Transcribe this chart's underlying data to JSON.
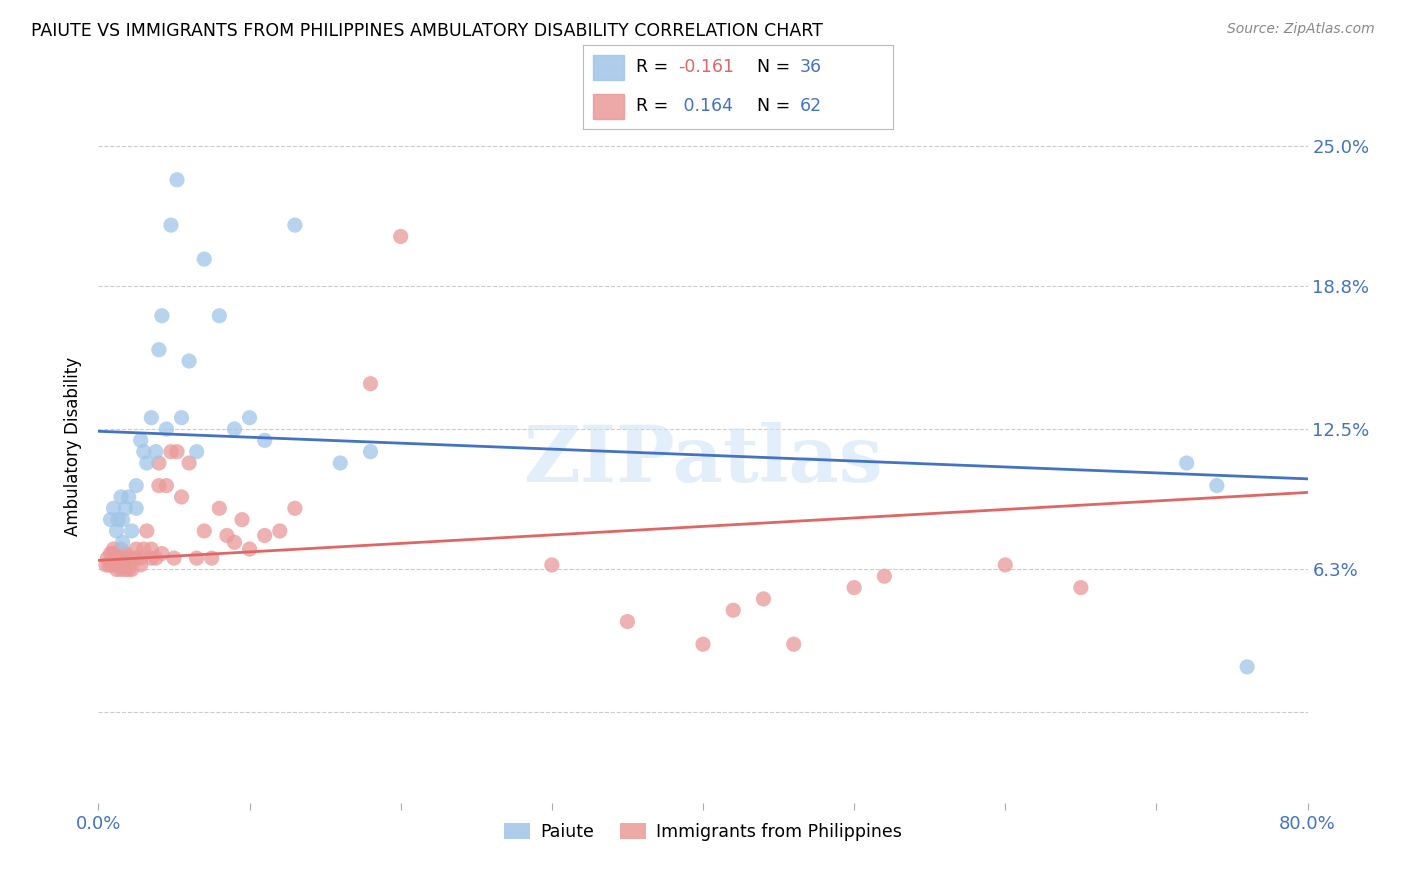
{
  "title": "PAIUTE VS IMMIGRANTS FROM PHILIPPINES AMBULATORY DISABILITY CORRELATION CHART",
  "source": "Source: ZipAtlas.com",
  "ylabel": "Ambulatory Disability",
  "y_ticks": [
    0.0,
    0.063,
    0.125,
    0.188,
    0.25
  ],
  "y_tick_labels": [
    "",
    "6.3%",
    "12.5%",
    "18.8%",
    "25.0%"
  ],
  "x_min": 0.0,
  "x_max": 0.8,
  "y_min": -0.04,
  "y_max": 0.275,
  "color_blue": "#9fc5e8",
  "color_pink": "#ea9999",
  "line_blue": "#4472c4",
  "line_pink": "#e06666",
  "axis_label_color": "#4472c4",
  "background_color": "#ffffff",
  "legend_label1": "Paiute",
  "legend_label2": "Immigrants from Philippines",
  "paiute_x": [
    0.008,
    0.01,
    0.012,
    0.013,
    0.015,
    0.016,
    0.016,
    0.018,
    0.02,
    0.022,
    0.025,
    0.025,
    0.028,
    0.03,
    0.032,
    0.035,
    0.038,
    0.04,
    0.042,
    0.045,
    0.048,
    0.052,
    0.055,
    0.06,
    0.065,
    0.07,
    0.08,
    0.09,
    0.1,
    0.11,
    0.13,
    0.16,
    0.18,
    0.72,
    0.74,
    0.76
  ],
  "paiute_y": [
    0.085,
    0.09,
    0.08,
    0.085,
    0.095,
    0.075,
    0.085,
    0.09,
    0.095,
    0.08,
    0.1,
    0.09,
    0.12,
    0.115,
    0.11,
    0.13,
    0.115,
    0.16,
    0.175,
    0.125,
    0.215,
    0.235,
    0.13,
    0.155,
    0.115,
    0.2,
    0.175,
    0.125,
    0.13,
    0.12,
    0.215,
    0.11,
    0.115,
    0.11,
    0.1,
    0.02
  ],
  "phil_x": [
    0.005,
    0.006,
    0.007,
    0.008,
    0.008,
    0.01,
    0.01,
    0.01,
    0.012,
    0.012,
    0.013,
    0.015,
    0.015,
    0.015,
    0.017,
    0.018,
    0.018,
    0.02,
    0.02,
    0.022,
    0.022,
    0.025,
    0.025,
    0.028,
    0.028,
    0.03,
    0.032,
    0.035,
    0.035,
    0.038,
    0.04,
    0.04,
    0.042,
    0.045,
    0.048,
    0.05,
    0.052,
    0.055,
    0.06,
    0.065,
    0.07,
    0.075,
    0.08,
    0.085,
    0.09,
    0.095,
    0.1,
    0.11,
    0.12,
    0.13,
    0.18,
    0.2,
    0.3,
    0.35,
    0.4,
    0.42,
    0.44,
    0.46,
    0.5,
    0.52,
    0.6,
    0.65
  ],
  "phil_y": [
    0.065,
    0.068,
    0.065,
    0.07,
    0.065,
    0.07,
    0.065,
    0.072,
    0.068,
    0.063,
    0.065,
    0.068,
    0.063,
    0.072,
    0.065,
    0.07,
    0.063,
    0.068,
    0.063,
    0.068,
    0.063,
    0.072,
    0.068,
    0.068,
    0.065,
    0.072,
    0.08,
    0.068,
    0.072,
    0.068,
    0.1,
    0.11,
    0.07,
    0.1,
    0.115,
    0.068,
    0.115,
    0.095,
    0.11,
    0.068,
    0.08,
    0.068,
    0.09,
    0.078,
    0.075,
    0.085,
    0.072,
    0.078,
    0.08,
    0.09,
    0.145,
    0.21,
    0.065,
    0.04,
    0.03,
    0.045,
    0.05,
    0.03,
    0.055,
    0.06,
    0.065,
    0.055
  ]
}
